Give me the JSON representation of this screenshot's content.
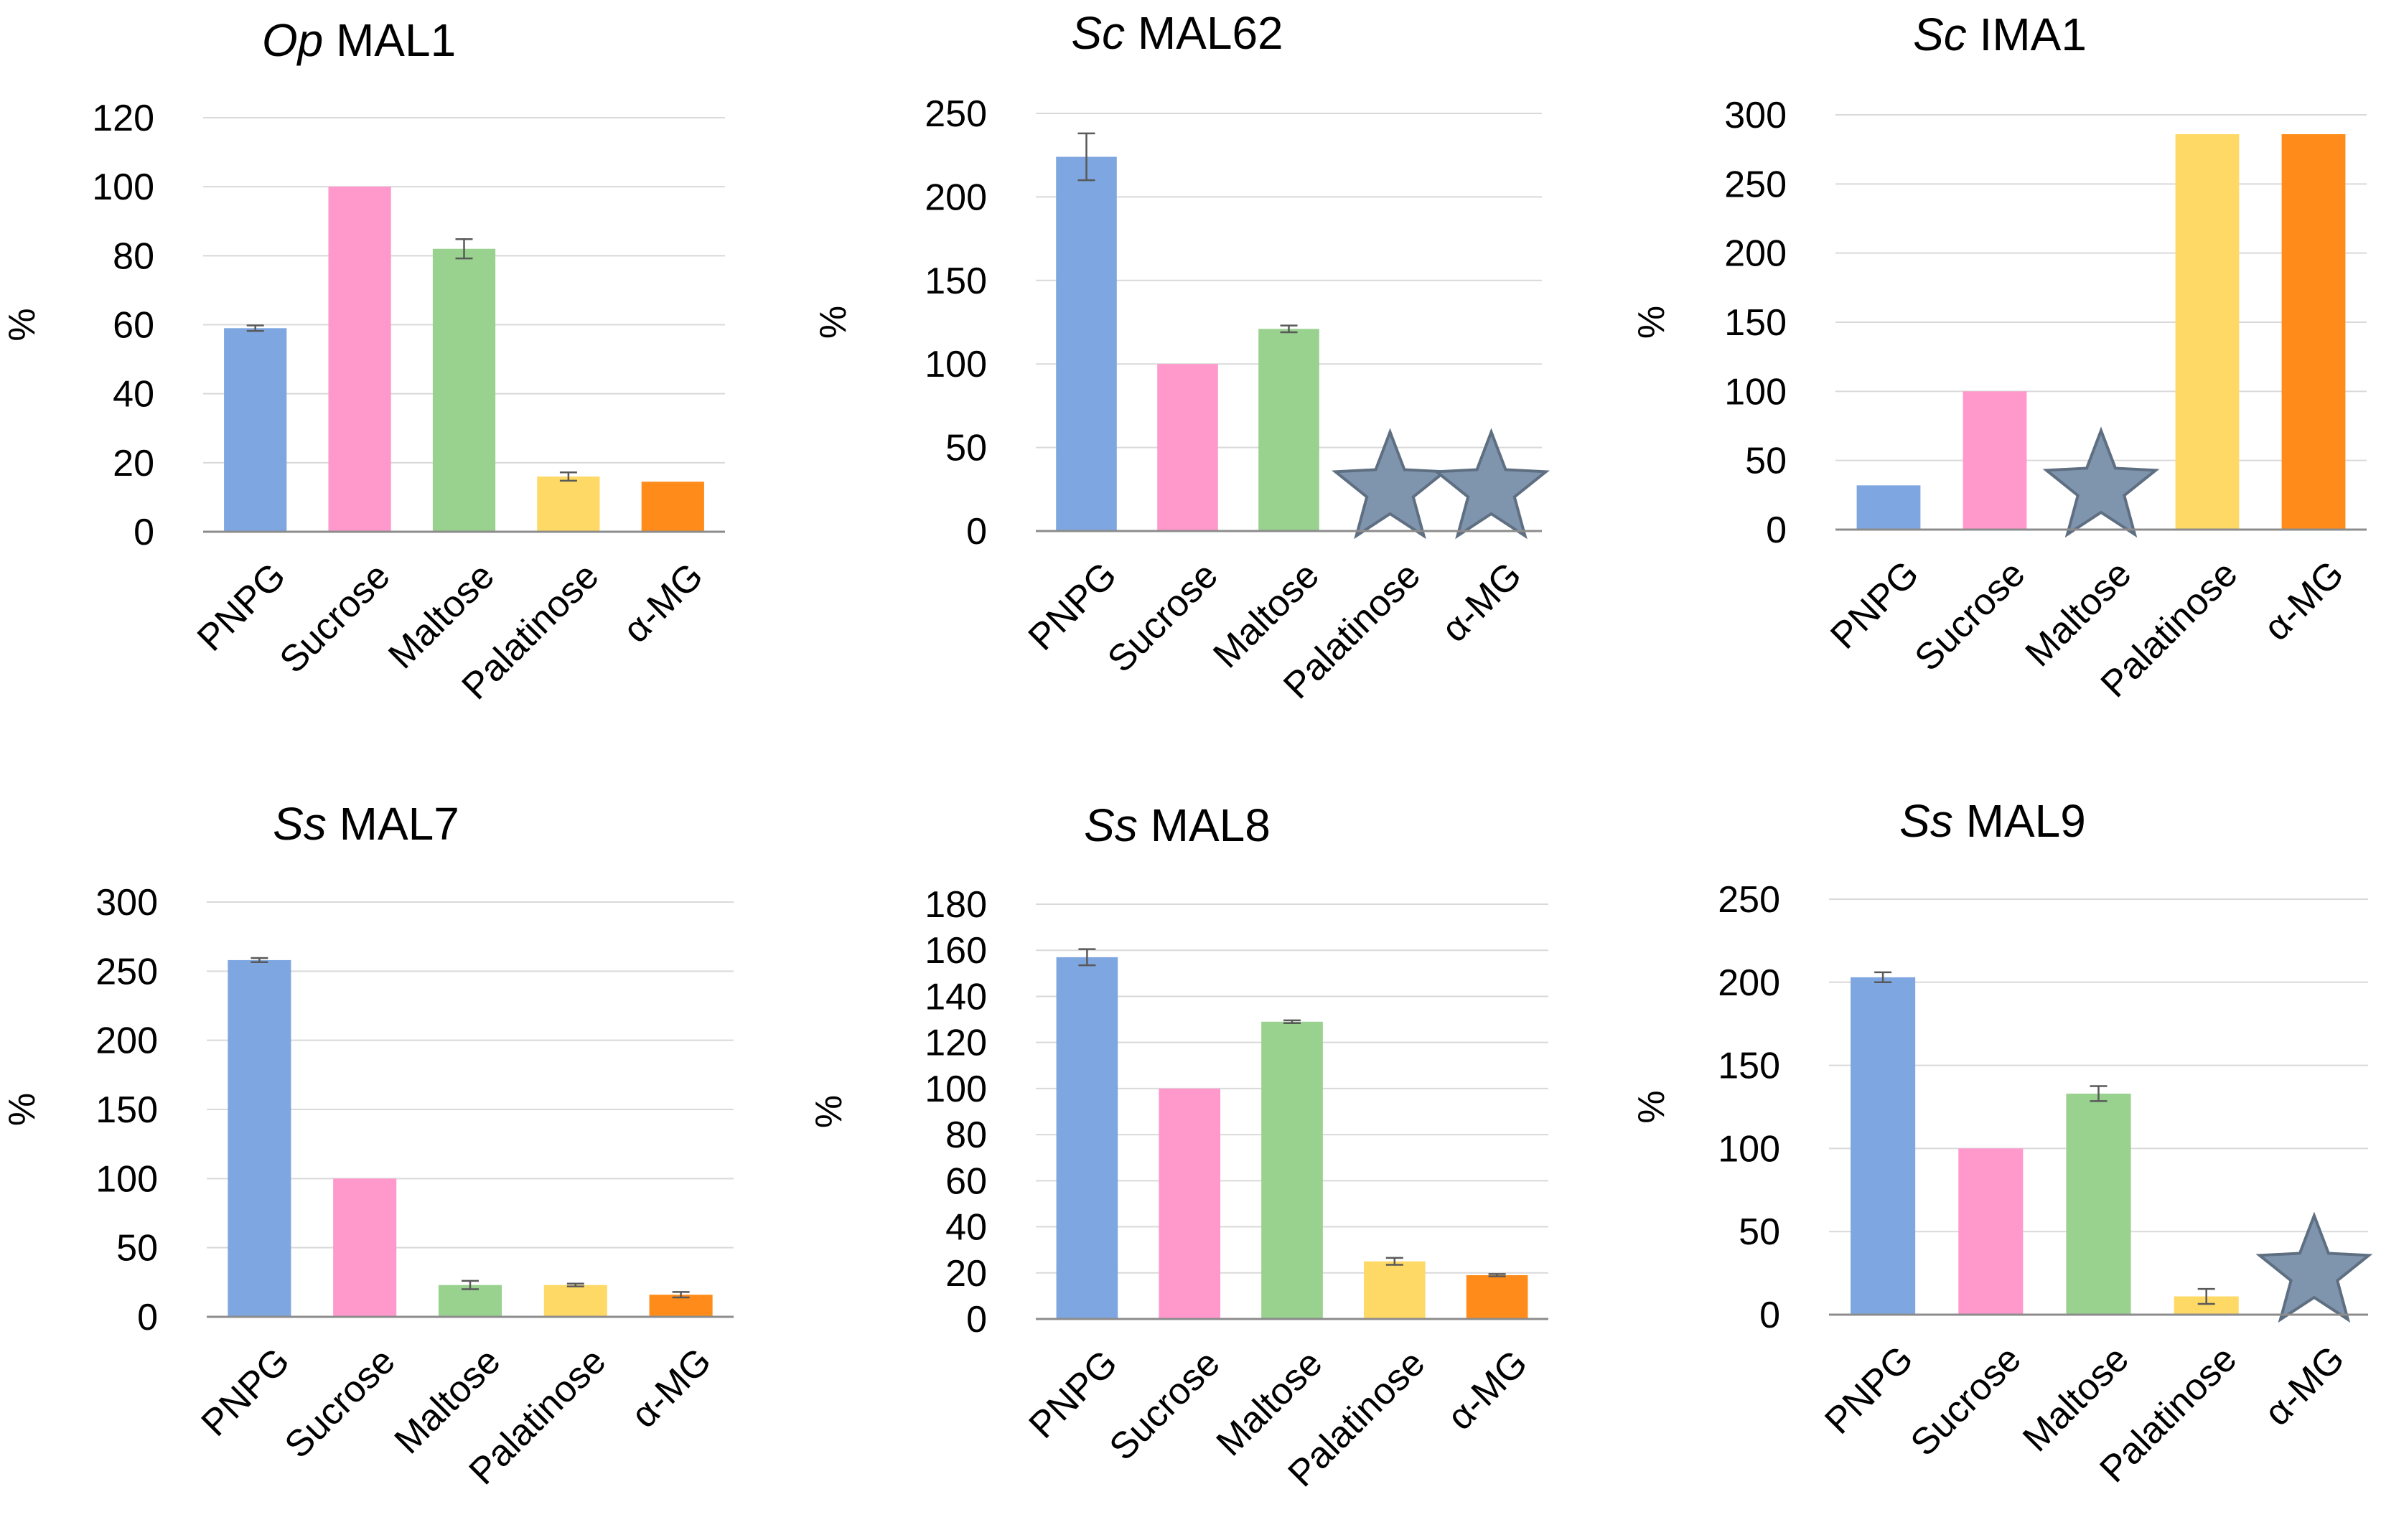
{
  "chart_data": [
    {
      "type": "bar",
      "title_species": "Op",
      "title_name": "MAL1",
      "ylabel": "%",
      "ylim": [
        0,
        120
      ],
      "yticks": [
        0,
        20,
        40,
        60,
        80,
        100,
        120
      ],
      "categories": [
        "PNPG",
        "Sucrose",
        "Maltose",
        "Palatinose",
        "α-MG"
      ],
      "values": [
        59,
        100,
        82,
        16,
        14.5
      ],
      "errors": [
        0.8,
        0,
        2.8,
        1.2,
        0
      ],
      "not_hydrolyzed": [
        false,
        false,
        false,
        false,
        false
      ],
      "colors": [
        "#7ea6e0",
        "#ff99cc",
        "#99d18f",
        "#ffd966",
        "#ff8c1a"
      ]
    },
    {
      "type": "bar",
      "title_species": "Sc",
      "title_name": "MAL62",
      "ylabel": "%",
      "ylim": [
        0,
        250
      ],
      "yticks": [
        0,
        50,
        100,
        150,
        200,
        250
      ],
      "categories": [
        "PNPG",
        "Sucrose",
        "Maltose",
        "Palatinose",
        "α-MG"
      ],
      "values": [
        224,
        100,
        121,
        0,
        0
      ],
      "errors": [
        14,
        0,
        2,
        0,
        0
      ],
      "not_hydrolyzed": [
        false,
        false,
        false,
        true,
        true
      ],
      "colors": [
        "#7ea6e0",
        "#ff99cc",
        "#99d18f",
        "#ffd966",
        "#ff8c1a"
      ]
    },
    {
      "type": "bar",
      "title_species": "Sc",
      "title_name": "IMA1",
      "ylabel": "%",
      "ylim": [
        0,
        300
      ],
      "yticks": [
        0,
        50,
        100,
        150,
        200,
        250,
        300
      ],
      "categories": [
        "PNPG",
        "Sucrose",
        "Maltose",
        "Palatinose",
        "α-MG"
      ],
      "values": [
        32,
        100,
        0,
        286,
        286
      ],
      "errors": [
        0,
        0,
        0,
        0,
        0
      ],
      "not_hydrolyzed": [
        false,
        false,
        true,
        false,
        false
      ],
      "colors": [
        "#7ea6e0",
        "#ff99cc",
        "#99d18f",
        "#ffd966",
        "#ff8c1a"
      ]
    },
    {
      "type": "bar",
      "title_species": "Ss",
      "title_name": "MAL7",
      "ylabel": "%",
      "ylim": [
        0,
        300
      ],
      "yticks": [
        0,
        50,
        100,
        150,
        200,
        250,
        300
      ],
      "categories": [
        "PNPG",
        "Sucrose",
        "Maltose",
        "Palatinose",
        "α-MG"
      ],
      "values": [
        258,
        100,
        23,
        23,
        16
      ],
      "errors": [
        1.5,
        0,
        3,
        1,
        2
      ],
      "not_hydrolyzed": [
        false,
        false,
        false,
        false,
        false
      ],
      "colors": [
        "#7ea6e0",
        "#ff99cc",
        "#99d18f",
        "#ffd966",
        "#ff8c1a"
      ]
    },
    {
      "type": "bar",
      "title_species": "Ss",
      "title_name": "MAL8",
      "ylabel": "%",
      "ylim": [
        0,
        180
      ],
      "yticks": [
        0,
        20,
        40,
        60,
        80,
        100,
        120,
        140,
        160,
        180
      ],
      "categories": [
        "PNPG",
        "Sucrose",
        "Maltose",
        "Palatinose",
        "α-MG"
      ],
      "values": [
        157,
        100,
        129,
        25,
        19
      ],
      "errors": [
        3.5,
        0,
        0.6,
        1.5,
        0.5
      ],
      "not_hydrolyzed": [
        false,
        false,
        false,
        false,
        false
      ],
      "colors": [
        "#7ea6e0",
        "#ff99cc",
        "#99d18f",
        "#ffd966",
        "#ff8c1a"
      ]
    },
    {
      "type": "bar",
      "title_species": "Ss",
      "title_name": "MAL9",
      "ylabel": "%",
      "ylim": [
        0,
        250
      ],
      "yticks": [
        0,
        50,
        100,
        150,
        200,
        250
      ],
      "categories": [
        "PNPG",
        "Sucrose",
        "Maltose",
        "Palatinose",
        "α-MG"
      ],
      "values": [
        203,
        100,
        133,
        11,
        0
      ],
      "errors": [
        3,
        0,
        4.5,
        4.5,
        0
      ],
      "not_hydrolyzed": [
        false,
        false,
        false,
        false,
        true
      ],
      "colors": [
        "#7ea6e0",
        "#ff99cc",
        "#99d18f",
        "#ffd966",
        "#ff8c1a"
      ]
    }
  ]
}
